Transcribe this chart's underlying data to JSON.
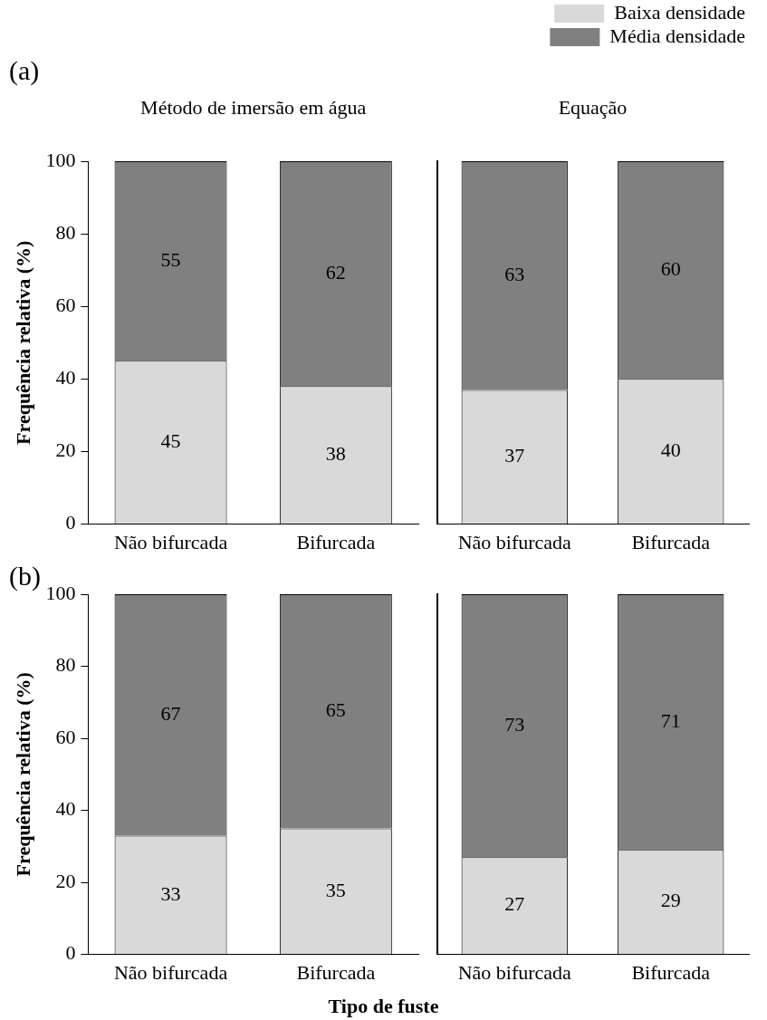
{
  "chart_data": [
    {
      "type": "bar",
      "title": "(a)",
      "subtitle": "Método de imersão em água",
      "ylabel": "Frequência relativa (%)",
      "categories": [
        "Não bifurcada",
        "Bifurcada"
      ],
      "stacked": true,
      "ylim": [
        0,
        100
      ],
      "yticks": [
        0,
        20,
        40,
        60,
        80,
        100
      ],
      "data_labels": true,
      "series": [
        {
          "color": "#d9d9d9",
          "values": [
            45,
            38
          ]
        },
        {
          "color": "#808080",
          "values": [
            55,
            62
          ]
        }
      ]
    },
    {
      "type": "bar",
      "subtitle": "Equação",
      "categories": [
        "Não bifurcada",
        "Bifurcada"
      ],
      "stacked": true,
      "ylim": [
        0,
        100
      ],
      "yticks": [
        0,
        20,
        40,
        60,
        80,
        100
      ],
      "tick_labels": "x",
      "legend": "top right",
      "data_labels": true,
      "series": [
        {
          "name": "Baixa densidade",
          "color": "#d9d9d9",
          "values": [
            37,
            40
          ]
        },
        {
          "name": "Média densidade",
          "color": "#808080",
          "values": [
            63,
            60
          ]
        }
      ]
    },
    {
      "type": "bar",
      "title": "(b)",
      "ylabel": "Frequência relativa (%)",
      "xlabel": "Tipo de fuste",
      "categories": [
        "Não bifurcada",
        "Bifurcada"
      ],
      "stacked": true,
      "ylim": [
        0,
        100
      ],
      "yticks": [
        0,
        20,
        40,
        60,
        80,
        100
      ],
      "data_labels": true,
      "series": [
        {
          "color": "#d9d9d9",
          "values": [
            33,
            35
          ]
        },
        {
          "color": "#808080",
          "values": [
            67,
            65
          ]
        }
      ]
    },
    {
      "type": "bar",
      "categories": [
        "Não bifurcada",
        "Bifurcada"
      ],
      "stacked": true,
      "ylim": [
        0,
        100
      ],
      "yticks": [
        0,
        20,
        40,
        60,
        80,
        100
      ],
      "tick_labels": "x",
      "data_labels": true,
      "series": [
        {
          "color": "#d9d9d9",
          "values": [
            27,
            29
          ]
        },
        {
          "color": "#808080",
          "values": [
            73,
            71
          ]
        }
      ]
    }
  ]
}
